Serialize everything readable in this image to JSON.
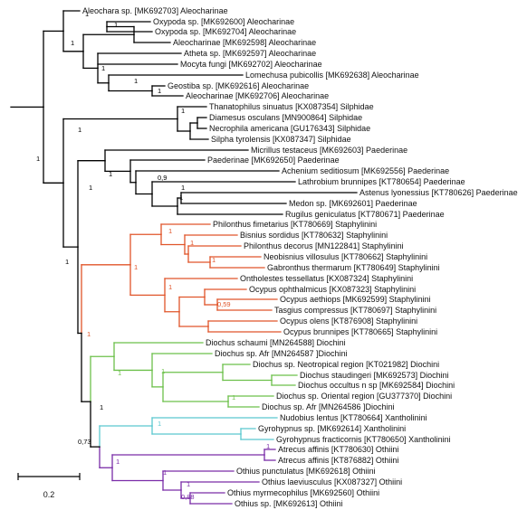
{
  "colors": {
    "black": "#000000",
    "orange": "#e0552a",
    "green": "#6cc04a",
    "cyan": "#5bc8cf",
    "purple": "#7a2ca8"
  },
  "leaves": [
    "Aleochara sp. [MK692703] Aleocharinae",
    "Oxypoda sp. [MK692600] Aleocharinae",
    "Oxypoda sp. [MK692704] Aleocharinae",
    "Aleocharinae [MK692598] Aleocharinae",
    "Atheta sp. [MK692597] Aleocharinae",
    "Mocyta fungi [MK692702] Aleocharinae",
    "Lomechusa pubicollis [MK692638] Aleocharinae",
    "Geostiba sp. [MK692616] Aleocharinae",
    "Aleocharinae [MK692706] Aleocharinae",
    "Thanatophilus sinuatus [KX087354] Silphidae",
    "Diamesus osculans [MN900864] Silphidae",
    "Necrophila americana [GU176343] Silphidae",
    "Silpha tyrolensis [KX087347] Silphidae",
    "Micrillus testaceus [MK692603] Paederinae",
    "Paederinae [MK692650] Paederinae",
    "Achenium seditiosum [MK692556] Paederinae",
    "Lathrobium brunnipes [KT780654] Paederinae",
    "Astenus lyonessius [KT780626] Paederinae",
    "Medon sp. [MK692601] Paederinae",
    "Rugilus geniculatus [KT780671] Paederinae",
    "Philonthus fimetarius [KT780669] Staphylinini",
    "Bisnius sordidus [KT780632] Staphylinini",
    "Philonthus decorus [MN122841] Staphylinini",
    "Neobisnius villosulus [KT780662] Staphylinini",
    "Gabronthus thermarum [KT780649] Staphylinini",
    "Ontholestes tessellatus [KX087324] Staphylinini",
    "Ocypus ophthalmicus [KX087323] Staphylinini",
    "Ocypus aethiops [MK692599] Staphylinini",
    "Tasgius compressus [KT780697] Staphylinini",
    "Ocypus olens [KT876908] Staphylinini",
    "Ocypus brunnipes [KT780665] Staphylinini",
    "Diochus schaumi [MN264588] Diochini",
    "Diochus sp. Afr [MN264587 ]Diochini",
    "Diochus sp. Neotropical region [KT021982] Diochini",
    "Diochus staudingeri [MK692573] Diochini",
    "Diochus occultus n sp [MK692584] Diochini",
    "Diochus sp. Oriental region [GU377370] Diochini",
    "Diochus sp. Afr [MN264586 ]Diochini",
    "Nudobius lentus [KT780664] Xantholinini",
    "Gyrohypnus sp. [MK692614] Xantholinini",
    "Gyrohypnus fracticornis [KT780650] Xantholinini",
    "Atrecus affinis [KT780630] Othiini",
    "Atrecus affinis [KT876882] Othiini",
    "Othius punctulatus [MK692618] Othiini",
    "Othius laeviusculus [KX087327] Othiini",
    "Othius myrmecophilus [MK692560] Othiini",
    "Othius sp. [MK692613] Othiini"
  ],
  "support_values": [
    {
      "value": "1",
      "color": "#000000"
    },
    {
      "value": "1",
      "color": "#000000"
    },
    {
      "value": "1",
      "color": "#000000"
    },
    {
      "value": "1",
      "color": "#000000"
    },
    {
      "value": "1",
      "color": "#000000"
    },
    {
      "value": "1",
      "color": "#000000"
    },
    {
      "value": "1",
      "color": "#000000"
    },
    {
      "value": "1",
      "color": "#000000"
    },
    {
      "value": "1",
      "color": "#000000"
    },
    {
      "value": "1",
      "color": "#000000"
    },
    {
      "value": "0,9",
      "color": "#000000"
    },
    {
      "value": "1",
      "color": "#000000"
    },
    {
      "value": "1",
      "color": "#000000"
    },
    {
      "value": "1",
      "color": "#000000"
    },
    {
      "value": "1",
      "color": "#000000"
    },
    {
      "value": "1",
      "color": "#e0552a"
    },
    {
      "value": "1",
      "color": "#e0552a"
    },
    {
      "value": "1",
      "color": "#e0552a"
    },
    {
      "value": "1",
      "color": "#e0552a"
    },
    {
      "value": "1",
      "color": "#e0552a"
    },
    {
      "value": "0,59",
      "color": "#e0552a"
    },
    {
      "value": "1",
      "color": "#e0552a"
    },
    {
      "value": "1",
      "color": "#6cc04a"
    },
    {
      "value": "1",
      "color": "#6cc04a"
    },
    {
      "value": "1",
      "color": "#6cc04a"
    },
    {
      "value": "1",
      "color": "#5bc8cf"
    },
    {
      "value": "1",
      "color": "#000000"
    },
    {
      "value": "0,73",
      "color": "#000000"
    },
    {
      "value": "1",
      "color": "#7a2ca8"
    },
    {
      "value": "1",
      "color": "#7a2ca8"
    },
    {
      "value": "1",
      "color": "#7a2ca8"
    },
    {
      "value": "1",
      "color": "#7a2ca8"
    },
    {
      "value": "0,88",
      "color": "#7a2ca8"
    }
  ],
  "scale_bar": {
    "label": "0.2",
    "value": 0.2
  }
}
